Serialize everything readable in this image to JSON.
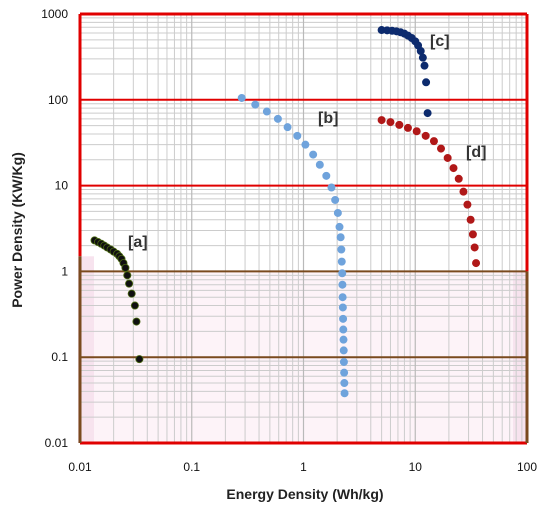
{
  "chart_data": {
    "type": "scatter",
    "title": "",
    "xlabel": "Energy Density (Wh/kg)",
    "ylabel": "Power Density (KW/Kg)",
    "x_scale": "log",
    "y_scale": "log",
    "xlim": [
      0.01,
      100
    ],
    "ylim": [
      0.01,
      1000
    ],
    "grid": true,
    "legend": "none",
    "x_ticks": [
      "0.01",
      "0.1",
      "1",
      "10",
      "100"
    ],
    "y_ticks": [
      "0.01",
      "0.1",
      "1",
      "10",
      "100",
      "1000"
    ],
    "colors": {
      "major_grid": "#e00000",
      "minor_grid": "#cccccc",
      "lower_band_line": "#7a4a1e",
      "lower_band_fill": "#fdf3f8"
    },
    "series": [
      {
        "label": "[a]",
        "color": "#101010",
        "stroke": "#4a6a10",
        "points": [
          [
            0.0135,
            2.3
          ],
          [
            0.0145,
            2.2
          ],
          [
            0.0155,
            2.1
          ],
          [
            0.0165,
            2.0
          ],
          [
            0.0175,
            1.9
          ],
          [
            0.0188,
            1.8
          ],
          [
            0.02,
            1.7
          ],
          [
            0.0215,
            1.6
          ],
          [
            0.0225,
            1.5
          ],
          [
            0.0235,
            1.4
          ],
          [
            0.0245,
            1.25
          ],
          [
            0.0255,
            1.1
          ],
          [
            0.0265,
            0.9
          ],
          [
            0.0275,
            0.72
          ],
          [
            0.029,
            0.55
          ],
          [
            0.031,
            0.4
          ],
          [
            0.032,
            0.26
          ],
          [
            0.034,
            0.095
          ]
        ]
      },
      {
        "label": "[b]",
        "color": "#6fa3dc",
        "stroke": "#6fa3dc",
        "points": [
          [
            0.28,
            105
          ],
          [
            0.37,
            88
          ],
          [
            0.47,
            73
          ],
          [
            0.59,
            60
          ],
          [
            0.72,
            48
          ],
          [
            0.88,
            38
          ],
          [
            1.04,
            30
          ],
          [
            1.22,
            23
          ],
          [
            1.4,
            17.5
          ],
          [
            1.6,
            13
          ],
          [
            1.78,
            9.5
          ],
          [
            1.92,
            6.8
          ],
          [
            2.03,
            4.8
          ],
          [
            2.1,
            3.3
          ],
          [
            2.15,
            2.5
          ],
          [
            2.18,
            1.8
          ],
          [
            2.2,
            1.3
          ],
          [
            2.22,
            0.95
          ],
          [
            2.23,
            0.7
          ],
          [
            2.24,
            0.5
          ],
          [
            2.25,
            0.38
          ],
          [
            2.26,
            0.28
          ],
          [
            2.27,
            0.21
          ],
          [
            2.28,
            0.16
          ],
          [
            2.29,
            0.12
          ],
          [
            2.3,
            0.088
          ],
          [
            2.31,
            0.066
          ],
          [
            2.32,
            0.05
          ],
          [
            2.33,
            0.038
          ]
        ]
      },
      {
        "label": "[c]",
        "color": "#0d2b6e",
        "stroke": "#0d2b6e",
        "points": [
          [
            5.0,
            650
          ],
          [
            5.6,
            645
          ],
          [
            6.2,
            638
          ],
          [
            6.8,
            628
          ],
          [
            7.4,
            612
          ],
          [
            8.0,
            590
          ],
          [
            8.6,
            560
          ],
          [
            9.3,
            525
          ],
          [
            10.0,
            480
          ],
          [
            10.6,
            430
          ],
          [
            11.2,
            370
          ],
          [
            11.7,
            310
          ],
          [
            12.1,
            250
          ],
          [
            12.5,
            160
          ],
          [
            12.9,
            70
          ]
        ]
      },
      {
        "label": "[d]",
        "color": "#b01818",
        "stroke": "#b01818",
        "points": [
          [
            5.0,
            58
          ],
          [
            6.0,
            55
          ],
          [
            7.2,
            51
          ],
          [
            8.6,
            47
          ],
          [
            10.3,
            43
          ],
          [
            12.4,
            38
          ],
          [
            14.7,
            33
          ],
          [
            17.0,
            27
          ],
          [
            19.5,
            21
          ],
          [
            22.0,
            16
          ],
          [
            24.5,
            12
          ],
          [
            27.0,
            8.5
          ],
          [
            29.3,
            6.0
          ],
          [
            31.3,
            4.0
          ],
          [
            32.8,
            2.7
          ],
          [
            34.0,
            1.9
          ],
          [
            35.0,
            1.25
          ]
        ]
      }
    ]
  }
}
